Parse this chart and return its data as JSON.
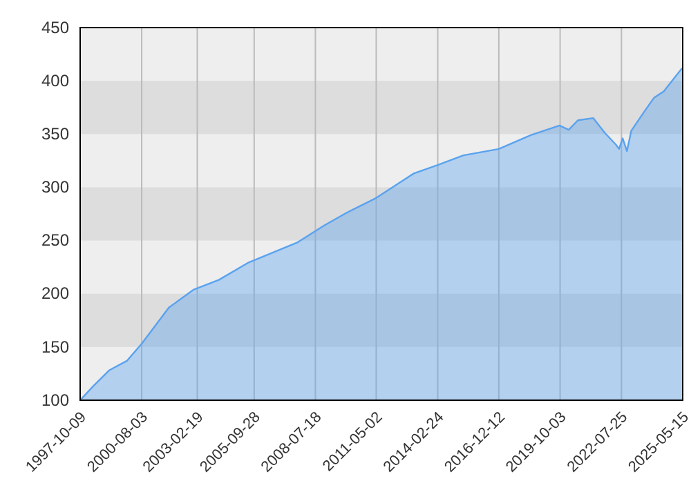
{
  "chart_data": {
    "type": "area",
    "xlim": [
      "1997-10-09",
      "2025-05-15"
    ],
    "ylim": [
      100,
      450
    ],
    "xticks": [
      "1997-10-09",
      "2000-08-03",
      "2003-02-19",
      "2005-09-28",
      "2008-07-18",
      "2011-05-02",
      "2014-02-24",
      "2016-12-12",
      "2019-10-03",
      "2022-07-25",
      "2025-05-15"
    ],
    "yticks": [
      100,
      150,
      200,
      250,
      300,
      350,
      400,
      450
    ],
    "grid": true,
    "series": [
      {
        "color": "#5aa2ee",
        "x": [
          "1997-10-09",
          "1998-05-13",
          "1999-02-05",
          "1999-11-30",
          "2000-08-03",
          "2001-11-01",
          "2002-12-25",
          "2004-02-15",
          "2005-06-15",
          "2007-09-14",
          "2008-12-08",
          "2009-12-19",
          "2011-05-02",
          "2013-01-19",
          "2014-02-24",
          "2015-04-29",
          "2016-12-12",
          "2018-05-29",
          "2019-09-23",
          "2020-02-24",
          "2020-07-27",
          "2021-04-10",
          "2021-10-22",
          "2022-04-25",
          "2022-06-15",
          "2022-08-14",
          "2022-10-25",
          "2023-01-05",
          "2023-07-29",
          "2024-01-19",
          "2024-07-01",
          "2025-05-05"
        ],
        "values": [
          100,
          113,
          128,
          137,
          153,
          187,
          204,
          213,
          229,
          248,
          264,
          276,
          290,
          313,
          321,
          330,
          336,
          349,
          358,
          354,
          363,
          365,
          351,
          340,
          336,
          346,
          334,
          353,
          370,
          384,
          390,
          412
        ]
      }
    ]
  }
}
